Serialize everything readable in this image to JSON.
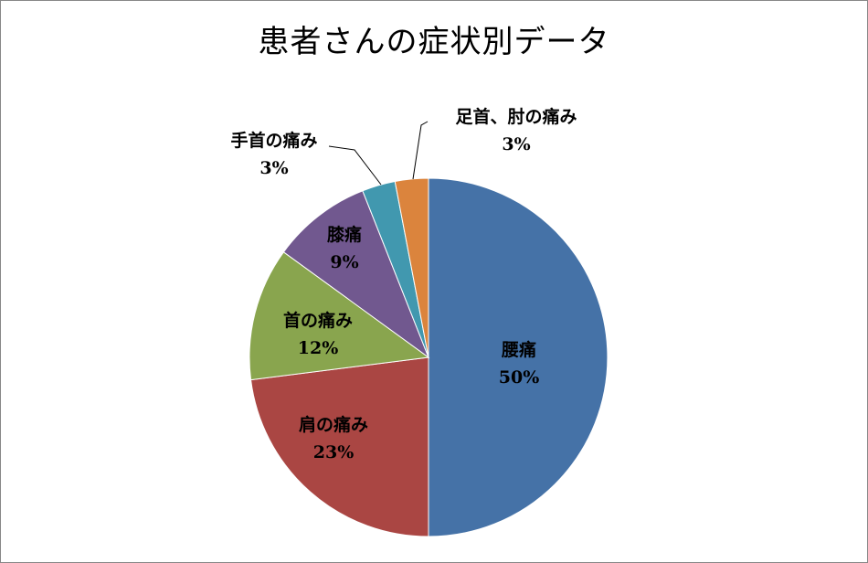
{
  "chart_data": {
    "type": "pie",
    "title": "患者さんの症状別データ",
    "slices": [
      {
        "label": "腰痛",
        "value": 50,
        "value_label": "50%",
        "color": "#4572A7"
      },
      {
        "label": "肩の痛み",
        "value": 23,
        "value_label": "23%",
        "color": "#AA4643"
      },
      {
        "label": "首の痛み",
        "value": 12,
        "value_label": "12%",
        "color": "#89A54E"
      },
      {
        "label": "膝痛",
        "value": 9,
        "value_label": "9%",
        "color": "#71588F"
      },
      {
        "label": "手首の痛み",
        "value": 3,
        "value_label": "3%",
        "color": "#4198AF"
      },
      {
        "label": "足首、肘の痛み",
        "value": 3,
        "value_label": "3%",
        "color": "#DB843D"
      }
    ],
    "legend": "none",
    "data_labels": "category name and percentage"
  }
}
